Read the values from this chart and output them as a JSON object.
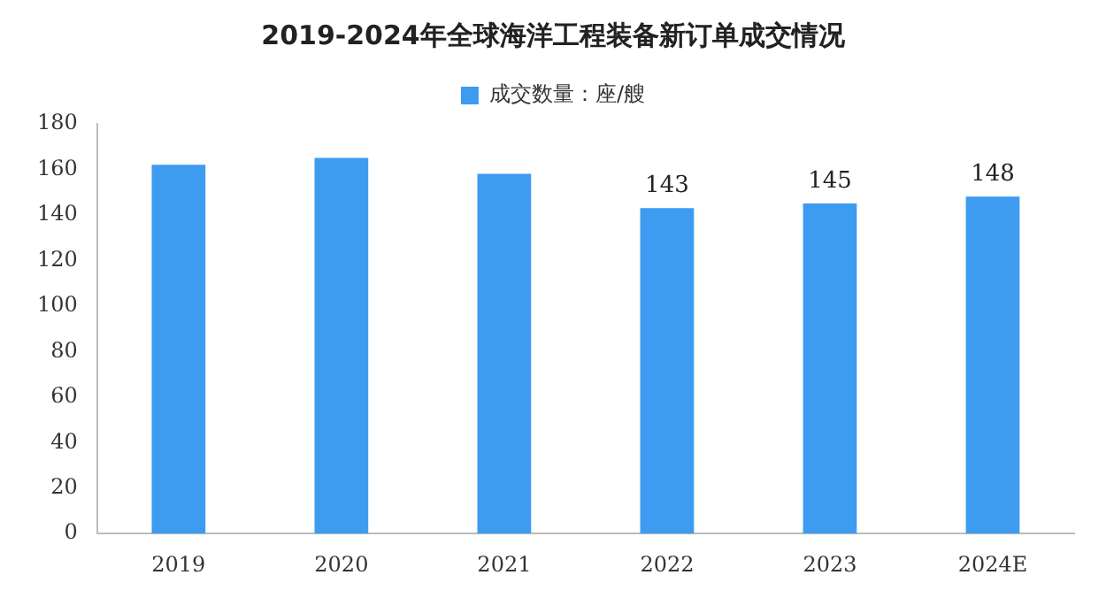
{
  "chart_data": {
    "type": "bar",
    "title": "2019-2024年全球海洋工程装备新订单成交情况",
    "categories": [
      "2019",
      "2020",
      "2021",
      "2022",
      "2023",
      "2024E"
    ],
    "series": [
      {
        "name": "成交数量：座/艘",
        "color": "#3d9bf0",
        "values": [
          162,
          165,
          158,
          143,
          145,
          148
        ],
        "value_labels": [
          null,
          null,
          null,
          "143",
          "145",
          "148"
        ]
      }
    ],
    "ylim": [
      0,
      180
    ],
    "yticks": [
      0,
      20,
      40,
      60,
      80,
      100,
      120,
      140,
      160,
      180
    ],
    "grid": false,
    "legend": "top"
  }
}
